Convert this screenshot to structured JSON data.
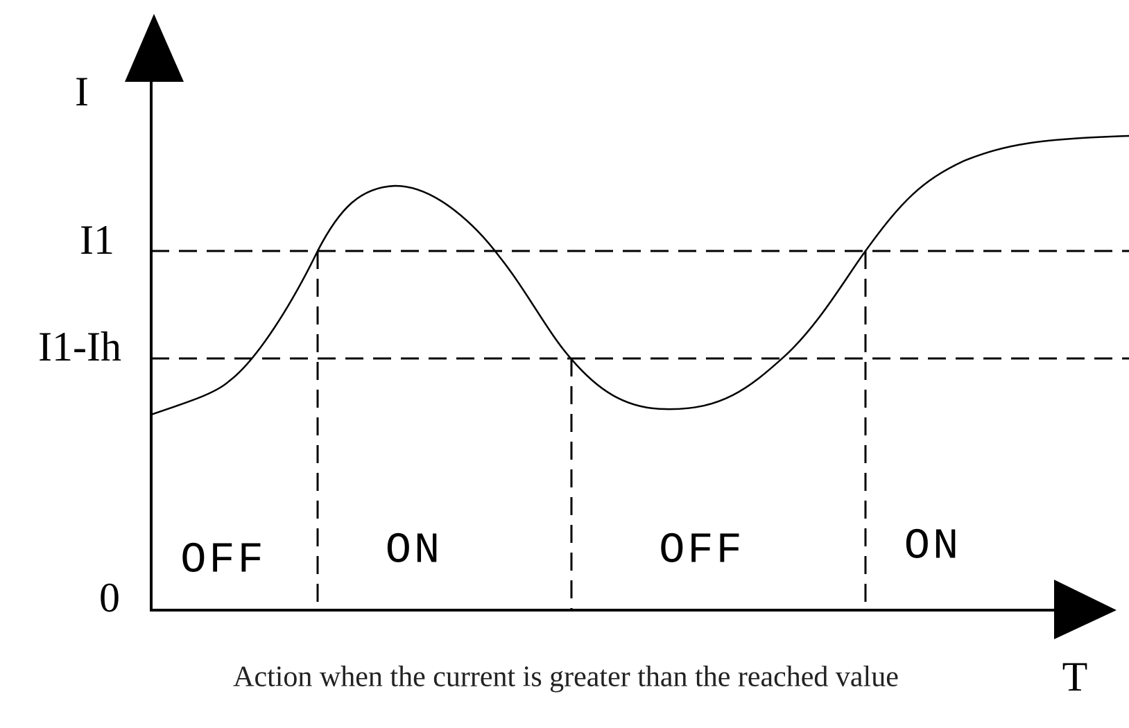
{
  "axes": {
    "y_label": "I",
    "x_label": "T",
    "origin": "0"
  },
  "levels": [
    {
      "label": "I1"
    },
    {
      "label": "I1-Ih"
    }
  ],
  "states": [
    "OFF",
    "ON",
    "OFF",
    "ON"
  ],
  "caption": "Action when the current is greater than the reached value"
}
